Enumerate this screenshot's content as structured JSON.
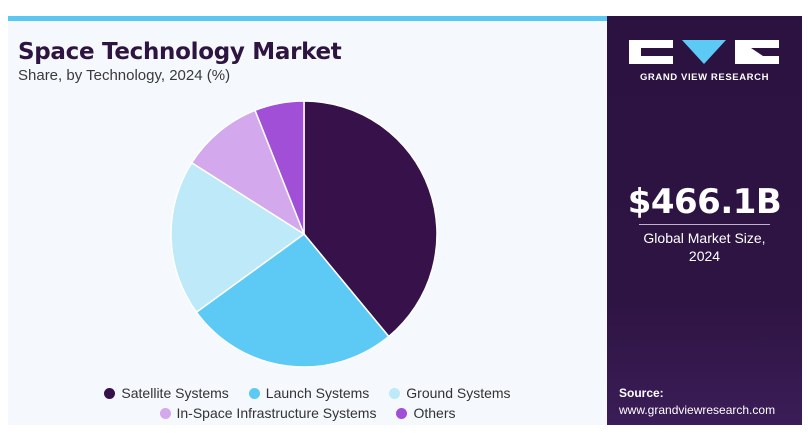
{
  "chart_data": {
    "type": "pie",
    "title": "Space Technology Market",
    "subtitle": "Share, by Technology, 2024 (%)",
    "slices": [
      {
        "name": "Satellite Systems",
        "value": 39,
        "color": "#37114a"
      },
      {
        "name": "Launch Systems",
        "value": 26,
        "color": "#5ccaf5"
      },
      {
        "name": "Ground Systems",
        "value": 19,
        "color": "#bde9f8"
      },
      {
        "name": "In-Space Infrastructure Systems",
        "value": 10,
        "color": "#d3a8ec"
      },
      {
        "name": "Others",
        "value": 6,
        "color": "#a04fd6"
      }
    ],
    "legend_position": "bottom"
  },
  "brand": {
    "logo_text": "GRAND VIEW RESEARCH",
    "logo_icon": "gvr-logo-icon"
  },
  "market": {
    "value": "$466.1B",
    "label_line1": "Global Market Size,",
    "label_line2": "2024"
  },
  "source": {
    "label": "Source:",
    "url": "www.grandviewresearch.com"
  }
}
